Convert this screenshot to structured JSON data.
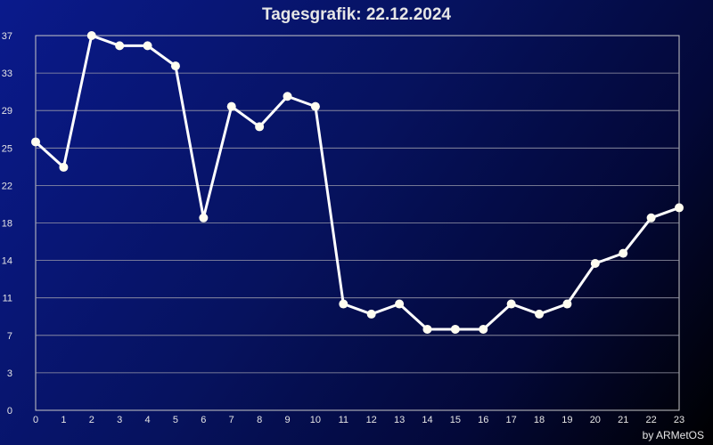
{
  "chart_data": {
    "type": "line",
    "title": "Tagesgrafik: 22.12.2024",
    "x": [
      0,
      1,
      2,
      3,
      4,
      5,
      6,
      7,
      8,
      9,
      10,
      11,
      12,
      13,
      14,
      15,
      16,
      17,
      18,
      19,
      20,
      21,
      22,
      23
    ],
    "series": [
      {
        "values": [
          26.5,
          24,
          37,
          36,
          36,
          34,
          19,
          30,
          28,
          31,
          30,
          10.5,
          9.5,
          10.5,
          8,
          8,
          8,
          10.5,
          9.5,
          10.5,
          14.5,
          15.5,
          19,
          20
        ]
      }
    ],
    "xlim": [
      0,
      23
    ],
    "ylim": [
      0,
      37
    ],
    "y_tick_labels": [
      "0",
      "3",
      "7",
      "11",
      "14",
      "18",
      "22",
      "25",
      "29",
      "33",
      "37"
    ],
    "x_tick_labels": [
      "0",
      "1",
      "2",
      "3",
      "4",
      "5",
      "6",
      "7",
      "8",
      "9",
      "10",
      "11",
      "12",
      "13",
      "14",
      "15",
      "16",
      "17",
      "18",
      "19",
      "20",
      "21",
      "22",
      "23"
    ],
    "grid": true,
    "line_color": "#ffffff",
    "marker_color": "#fffdf0"
  },
  "footer": {
    "credit": "by ARMetOS"
  }
}
